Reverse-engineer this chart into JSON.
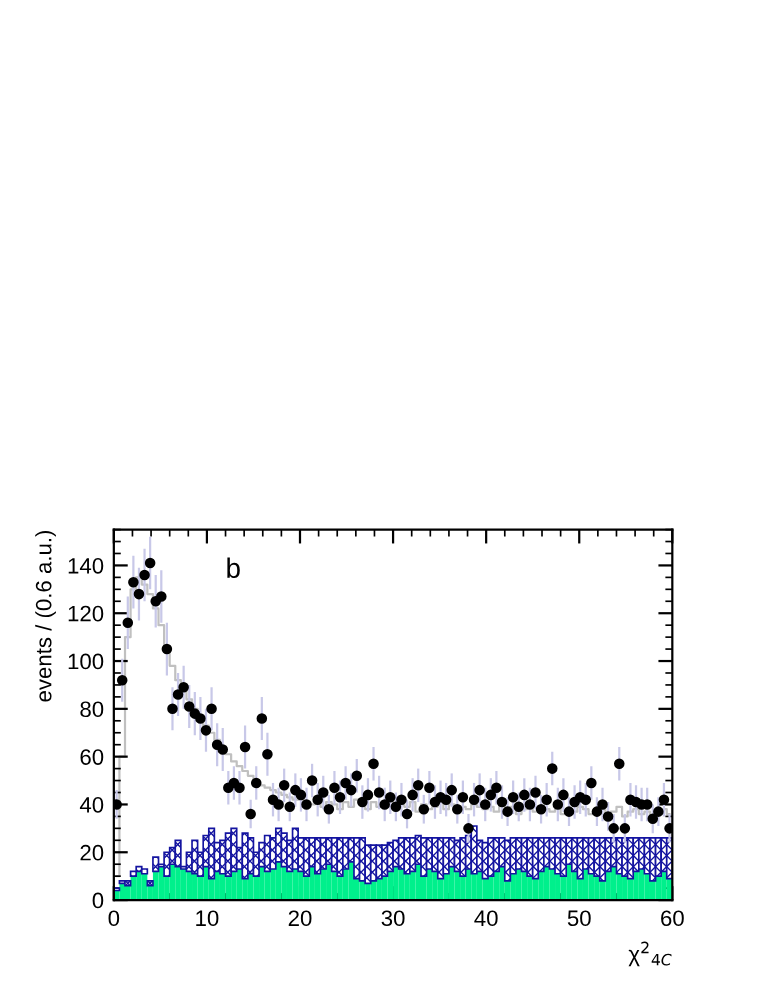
{
  "chart_data": {
    "type": "bar",
    "xlabel": "χ$^{2}$$_{4C}$",
    "ylabel": "events / (0.6 a.u.)",
    "annotations": [
      "b"
    ],
    "xlim": [
      0,
      60
    ],
    "ylim": [
      0,
      155
    ],
    "xticks": [
      0,
      10,
      20,
      30,
      40,
      50,
      60
    ],
    "yticks": [
      0,
      20,
      40,
      60,
      80,
      100,
      120,
      140
    ],
    "grid": false,
    "legend": false,
    "stacked": true,
    "x": [
      0.3,
      0.9,
      1.5,
      2.1,
      2.7,
      3.3,
      3.9,
      4.5,
      5.1,
      5.7,
      6.3,
      6.9,
      7.5,
      8.1,
      8.7,
      9.3,
      9.9,
      10.5,
      11.1,
      11.7,
      12.3,
      12.9,
      13.5,
      14.1,
      14.7,
      15.3,
      15.9,
      16.5,
      17.1,
      17.7,
      18.3,
      18.9,
      19.5,
      20.1,
      20.7,
      21.3,
      21.9,
      22.5,
      23.1,
      23.7,
      24.3,
      24.9,
      25.5,
      26.1,
      26.7,
      27.3,
      27.9,
      28.5,
      29.1,
      29.7,
      30.3,
      30.9,
      31.5,
      32.1,
      32.7,
      33.3,
      33.9,
      34.5,
      35.1,
      35.7,
      36.3,
      36.9,
      37.5,
      38.1,
      38.7,
      39.3,
      39.9,
      40.5,
      41.1,
      41.7,
      42.3,
      42.9,
      43.5,
      44.1,
      44.7,
      45.3,
      45.9,
      46.5,
      47.1,
      47.7,
      48.3,
      48.9,
      49.5,
      50.1,
      50.7,
      51.3,
      51.9,
      52.5,
      53.1,
      53.7,
      54.3,
      54.9,
      55.5,
      56.1,
      56.7,
      57.3,
      57.9,
      58.5,
      59.1,
      59.7
    ],
    "series": [
      {
        "color": "#00f08c",
        "values": [
          4,
          7,
          6,
          10,
          12,
          11,
          6,
          12,
          14,
          10,
          15,
          14,
          13,
          12,
          11,
          10,
          14,
          9,
          12,
          11,
          10,
          12,
          13,
          9,
          11,
          10,
          14,
          12,
          13,
          16,
          14,
          12,
          13,
          12,
          10,
          14,
          11,
          13,
          15,
          12,
          10,
          13,
          16,
          9,
          8,
          7,
          8,
          9,
          10,
          12,
          14,
          13,
          11,
          12,
          15,
          10,
          13,
          12,
          9,
          11,
          14,
          12,
          10,
          13,
          11,
          12,
          9,
          10,
          12,
          14,
          8,
          11,
          13,
          12,
          10,
          9,
          12,
          14,
          13,
          11,
          10,
          15,
          12,
          9,
          13,
          11,
          10,
          8,
          12,
          14,
          11,
          10,
          9,
          12,
          13,
          11,
          8,
          10,
          12,
          9
        ]
      },
      {
        "color": "#1414a0",
        "values": [
          1,
          1,
          2,
          2,
          2,
          2,
          2,
          6,
          1,
          10,
          7,
          11,
          1,
          8,
          14,
          10,
          13,
          21,
          12,
          14,
          18,
          18,
          9,
          19,
          15,
          10,
          10,
          15,
          13,
          14,
          14,
          13,
          17,
          14,
          16,
          12,
          15,
          13,
          11,
          14,
          16,
          13,
          10,
          17,
          18,
          16,
          15,
          14,
          13,
          12,
          11,
          13,
          15,
          14,
          12,
          16,
          13,
          14,
          17,
          15,
          12,
          13,
          16,
          14,
          20,
          13,
          15,
          16,
          14,
          12,
          17,
          15,
          13,
          14,
          16,
          17,
          14,
          12,
          13,
          15,
          16,
          11,
          14,
          17,
          13,
          15,
          16,
          18,
          14,
          12,
          15,
          16,
          17,
          14,
          13,
          15,
          18,
          16,
          14,
          17
        ]
      },
      {
        "type": "step",
        "color": "#c0c0c0",
        "x": [
          0.3,
          0.9,
          1.5,
          2.1,
          2.7,
          3.3,
          3.9,
          4.5,
          5.1,
          5.7,
          6.3,
          6.9,
          7.5,
          8.1,
          8.7,
          9.3,
          9.9,
          10.5,
          11.1,
          11.7,
          12.3,
          12.9,
          13.5,
          14.1,
          14.7,
          15.3,
          15.9,
          16.5,
          17.1,
          17.7,
          18.3,
          18.9,
          19.5,
          20.1,
          20.7,
          21.3,
          21.9,
          22.5,
          23.1,
          23.7,
          24.3,
          24.9,
          25.5,
          26.1,
          26.7,
          27.3,
          27.9,
          28.5,
          29.1,
          29.7,
          30.3,
          30.9,
          31.5,
          32.1,
          32.7,
          33.3,
          33.9,
          34.5,
          35.1,
          35.7,
          36.3,
          36.9,
          37.5,
          38.1,
          38.7,
          39.3,
          39.9,
          40.5,
          41.1,
          41.7,
          42.3,
          42.9,
          43.5,
          44.1,
          44.7,
          45.3,
          45.9,
          46.5,
          47.1,
          47.7,
          48.3,
          48.9,
          49.5,
          50.1,
          50.7,
          51.3,
          51.9,
          52.5,
          53.1,
          53.7,
          54.3,
          54.9,
          55.5,
          56.1,
          56.7,
          57.3,
          57.9,
          58.5,
          59.1,
          59.7
        ],
        "values": [
          10,
          60,
          110,
          130,
          135,
          132,
          128,
          122,
          115,
          106,
          98,
          92,
          88,
          84,
          80,
          76,
          73,
          70,
          67,
          64,
          61,
          58,
          56,
          54,
          52,
          50,
          48,
          47,
          46,
          45,
          44,
          43,
          42,
          42,
          41,
          40,
          42,
          39,
          41,
          40,
          38,
          41,
          39,
          42,
          40,
          38,
          41,
          39,
          40,
          42,
          38,
          40,
          39,
          41,
          37,
          40,
          38,
          39,
          41,
          38,
          40,
          37,
          39,
          38,
          40,
          39,
          38,
          39,
          37,
          40,
          38,
          39,
          36,
          38,
          40,
          37,
          39,
          38,
          37,
          39,
          36,
          38,
          37,
          39,
          38,
          36,
          37,
          38,
          36,
          37,
          39,
          35,
          37,
          38,
          36,
          37,
          35,
          36,
          38,
          36
        ]
      },
      {
        "type": "scatter",
        "color": "#000000",
        "marker": "circle",
        "x": [
          0.3,
          0.9,
          1.5,
          2.1,
          2.7,
          3.3,
          3.9,
          4.5,
          5.1,
          5.7,
          6.3,
          6.9,
          7.5,
          8.1,
          8.7,
          9.3,
          9.9,
          10.5,
          11.1,
          11.7,
          12.3,
          12.9,
          13.5,
          14.1,
          14.7,
          15.3,
          15.9,
          16.5,
          17.1,
          17.7,
          18.3,
          18.9,
          19.5,
          20.1,
          20.7,
          21.3,
          21.9,
          22.5,
          23.1,
          23.7,
          24.3,
          24.9,
          25.5,
          26.1,
          26.7,
          27.3,
          27.9,
          28.5,
          29.1,
          29.7,
          30.3,
          30.9,
          31.5,
          32.1,
          32.7,
          33.3,
          33.9,
          34.5,
          35.1,
          35.7,
          36.3,
          36.9,
          37.5,
          38.1,
          38.7,
          39.3,
          39.9,
          40.5,
          41.1,
          41.7,
          42.3,
          42.9,
          43.5,
          44.1,
          44.7,
          45.3,
          45.9,
          46.5,
          47.1,
          47.7,
          48.3,
          48.9,
          49.5,
          50.1,
          50.7,
          51.3,
          51.9,
          52.5,
          53.1,
          53.7,
          54.3,
          54.9,
          55.5,
          56.1,
          56.7,
          57.3,
          57.9,
          58.5,
          59.1,
          59.7
        ],
        "values": [
          40,
          92,
          116,
          133,
          128,
          136,
          141,
          125,
          127,
          105,
          80,
          86,
          89,
          81,
          78,
          76,
          71,
          80,
          65,
          63,
          47,
          49,
          47,
          64,
          36,
          49,
          76,
          61,
          42,
          40,
          48,
          39,
          46,
          44,
          40,
          50,
          42,
          45,
          38,
          47,
          43,
          49,
          46,
          52,
          41,
          44,
          57,
          45,
          40,
          43,
          39,
          42,
          36,
          44,
          48,
          38,
          47,
          41,
          43,
          42,
          46,
          38,
          43,
          30,
          42,
          46,
          40,
          44,
          47,
          41,
          37,
          43,
          39,
          44,
          40,
          45,
          38,
          42,
          55,
          40,
          44,
          37,
          41,
          43,
          42,
          49,
          37,
          40,
          35,
          30,
          57,
          30,
          42,
          41,
          40,
          40,
          34,
          37,
          42,
          30
        ],
        "errors": [
          6,
          9,
          11,
          11,
          11,
          11,
          11,
          11,
          11,
          11,
          9,
          9,
          9,
          9,
          9,
          9,
          9,
          9,
          9,
          9,
          7,
          7,
          7,
          9,
          6,
          7,
          9,
          9,
          7,
          7,
          7,
          6,
          7,
          7,
          7,
          7,
          7,
          7,
          6,
          7,
          7,
          7,
          7,
          7,
          7,
          7,
          7,
          7,
          7,
          7,
          6,
          7,
          6,
          7,
          7,
          6,
          7,
          7,
          7,
          7,
          7,
          6,
          7,
          6,
          7,
          7,
          7,
          7,
          7,
          7,
          6,
          7,
          6,
          7,
          7,
          7,
          6,
          7,
          7,
          7,
          7,
          6,
          7,
          7,
          7,
          7,
          6,
          7,
          6,
          6,
          7,
          6,
          7,
          7,
          7,
          7,
          6,
          6,
          7,
          6
        ]
      }
    ]
  }
}
